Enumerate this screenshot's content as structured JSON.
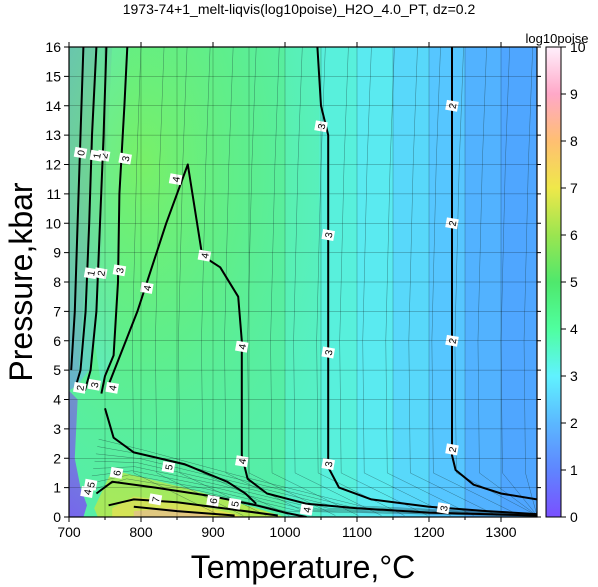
{
  "chart_data": {
    "type": "heatmap",
    "title": "1973-74+1_melt-liqvis(log10poise)_H2O_4.0_PT, dz=0.2",
    "xlabel": "Temperature,°C",
    "ylabel": "Pressure,kbar",
    "xlim": [
      700,
      1350
    ],
    "ylim": [
      0,
      16
    ],
    "x_ticks": [
      "700",
      "800",
      "900",
      "1000",
      "1100",
      "1200",
      "1300"
    ],
    "y_ticks": [
      "0",
      "1",
      "2",
      "3",
      "4",
      "5",
      "6",
      "7",
      "8",
      "9",
      "10",
      "11",
      "12",
      "13",
      "14",
      "15",
      "16"
    ],
    "grid": true,
    "colorbar": {
      "label": "log10poise",
      "range": [
        0,
        10
      ],
      "ticks": [
        "0",
        "1",
        "2",
        "3",
        "4",
        "5",
        "6",
        "7",
        "8",
        "9",
        "10"
      ]
    },
    "contour_interval": 0.2,
    "major_contours": [
      {
        "level": "2",
        "points": [
          [
            1232,
            16
          ],
          [
            1232,
            2.1
          ],
          [
            1237,
            1.6
          ],
          [
            1262,
            1.1
          ],
          [
            1300,
            0.8
          ],
          [
            1350,
            0.6
          ]
        ]
      },
      {
        "level": "3",
        "points": [
          [
            1045,
            16
          ],
          [
            1050,
            14
          ],
          [
            1060,
            13
          ],
          [
            1060,
            1.7
          ],
          [
            1075,
            1.0
          ],
          [
            1120,
            0.6
          ],
          [
            1200,
            0.35
          ],
          [
            1280,
            0.2
          ],
          [
            1350,
            0.1
          ]
        ]
      },
      {
        "level": "4",
        "points": [
          [
            755,
            4.5
          ],
          [
            795,
            7
          ],
          [
            835,
            10
          ],
          [
            865,
            12
          ],
          [
            885,
            8.9
          ],
          [
            910,
            8.5
          ],
          [
            935,
            7.5
          ],
          [
            940,
            6.0
          ],
          [
            940,
            2.1
          ],
          [
            948,
            1.3
          ],
          [
            975,
            0.8
          ],
          [
            1030,
            0.45
          ],
          [
            1100,
            0.3
          ],
          [
            1200,
            0.15
          ],
          [
            1350,
            0.05
          ]
        ]
      },
      {
        "level": "4",
        "points": [
          [
            750,
            3.7
          ],
          [
            762,
            2.7
          ],
          [
            790,
            2.2
          ],
          [
            860,
            1.8
          ],
          [
            920,
            1.2
          ],
          [
            945,
            0.8
          ],
          [
            960,
            0.45
          ]
        ]
      },
      {
        "level": "3",
        "points": [
          [
            781,
            16
          ],
          [
            777,
            14
          ],
          [
            770,
            11
          ],
          [
            768,
            8
          ],
          [
            762,
            5.5
          ],
          [
            750,
            4.8
          ],
          [
            745,
            4.2
          ]
        ]
      },
      {
        "level": "2",
        "points": [
          [
            752,
            16
          ],
          [
            748,
            13
          ],
          [
            743,
            10
          ],
          [
            738,
            7
          ],
          [
            730,
            5
          ],
          [
            722,
            4.3
          ]
        ]
      },
      {
        "level": "1",
        "points": [
          [
            738,
            16
          ],
          [
            732,
            13
          ],
          [
            728,
            10
          ],
          [
            723,
            7
          ],
          [
            716,
            5
          ],
          [
            710,
            4.5
          ]
        ]
      },
      {
        "level": "0",
        "points": [
          [
            720,
            16
          ],
          [
            716,
            13
          ],
          [
            712,
            10
          ],
          [
            708,
            7
          ],
          [
            703,
            5
          ]
        ]
      },
      {
        "level": "5",
        "points": [
          [
            738,
            0.8
          ],
          [
            760,
            1.2
          ],
          [
            820,
            1.0
          ],
          [
            900,
            0.7
          ],
          [
            960,
            0.4
          ],
          [
            1000,
            0.15
          ],
          [
            1030,
            0.0
          ]
        ]
      },
      {
        "level": "6",
        "points": [
          [
            755,
            0.4
          ],
          [
            790,
            0.6
          ],
          [
            850,
            0.5
          ],
          [
            930,
            0.25
          ],
          [
            990,
            0.05
          ]
        ]
      },
      {
        "level": "7",
        "points": [
          [
            790,
            0.35
          ],
          [
            850,
            0.2
          ],
          [
            930,
            0.05
          ]
        ]
      }
    ],
    "contour_labels": [
      {
        "text": "2",
        "x": 1232,
        "y": 14.0
      },
      {
        "text": "2",
        "x": 1232,
        "y": 10.0
      },
      {
        "text": "2",
        "x": 1232,
        "y": 6.0
      },
      {
        "text": "2",
        "x": 1232,
        "y": 2.3
      },
      {
        "text": "3",
        "x": 1050,
        "y": 13.3
      },
      {
        "text": "3",
        "x": 1060,
        "y": 9.6
      },
      {
        "text": "3",
        "x": 1060,
        "y": 5.6
      },
      {
        "text": "3",
        "x": 1060,
        "y": 1.8
      },
      {
        "text": "3",
        "x": 1220,
        "y": 0.3
      },
      {
        "text": "4",
        "x": 848,
        "y": 11.5
      },
      {
        "text": "4",
        "x": 888,
        "y": 8.9
      },
      {
        "text": "4",
        "x": 808,
        "y": 7.8
      },
      {
        "text": "4",
        "x": 940,
        "y": 5.8
      },
      {
        "text": "4",
        "x": 940,
        "y": 1.9
      },
      {
        "text": "4",
        "x": 1030,
        "y": 0.25
      },
      {
        "text": "4",
        "x": 760,
        "y": 4.4
      },
      {
        "text": "3",
        "x": 778,
        "y": 12.2
      },
      {
        "text": "3",
        "x": 770,
        "y": 8.4
      },
      {
        "text": "3",
        "x": 735,
        "y": 4.5
      },
      {
        "text": "2",
        "x": 748,
        "y": 12.3
      },
      {
        "text": "2",
        "x": 744,
        "y": 8.3
      },
      {
        "text": "2",
        "x": 715,
        "y": 4.4
      },
      {
        "text": "1",
        "x": 738,
        "y": 12.3
      },
      {
        "text": "1",
        "x": 730,
        "y": 8.3
      },
      {
        "text": "0",
        "x": 716,
        "y": 12.4
      },
      {
        "text": "5",
        "x": 838,
        "y": 1.7
      },
      {
        "text": "5",
        "x": 930,
        "y": 0.45
      },
      {
        "text": "6",
        "x": 766,
        "y": 1.5
      },
      {
        "text": "6",
        "x": 900,
        "y": 0.55
      },
      {
        "text": "7",
        "x": 820,
        "y": 0.6
      },
      {
        "text": "5",
        "x": 730,
        "y": 1.1
      },
      {
        "text": "4",
        "x": 725,
        "y": 0.85
      }
    ]
  }
}
